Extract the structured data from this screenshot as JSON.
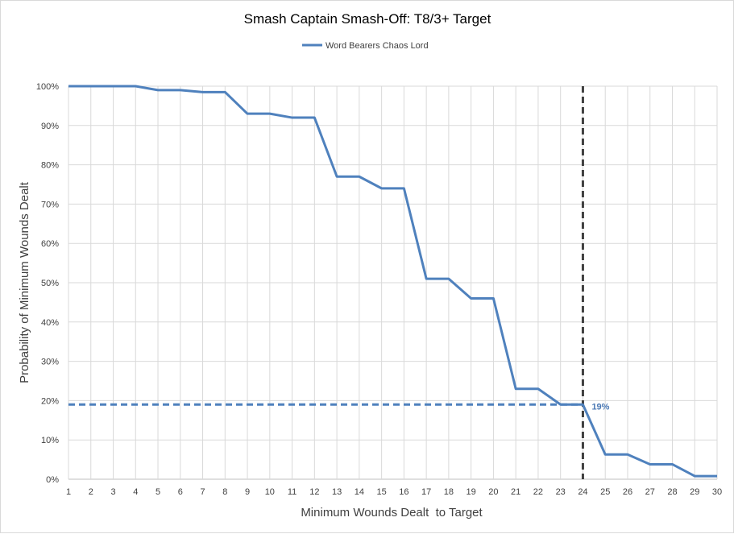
{
  "chart_data": {
    "type": "line",
    "title": "Smash Captain Smash-Off: T8/3+ Target",
    "xlabel": "Minimum Wounds Dealt  to Target",
    "ylabel": "Probability of Minimum Wounds Dealt",
    "x": [
      1,
      2,
      3,
      4,
      5,
      6,
      7,
      8,
      9,
      10,
      11,
      12,
      13,
      14,
      15,
      16,
      17,
      18,
      19,
      20,
      21,
      22,
      23,
      24,
      25,
      26,
      27,
      28,
      29,
      30
    ],
    "xlim": [
      1,
      30
    ],
    "ylim": [
      0,
      100
    ],
    "y_ticks": [
      "0%",
      "10%",
      "20%",
      "30%",
      "40%",
      "50%",
      "60%",
      "70%",
      "80%",
      "90%",
      "100%"
    ],
    "grid": true,
    "legend_position": "top-center",
    "series": [
      {
        "name": "Word Bearers Chaos Lord",
        "color": "#4f81bd",
        "values": [
          100,
          100,
          100,
          100,
          99,
          99,
          98.5,
          98.5,
          93,
          93,
          92,
          92,
          77,
          77,
          74,
          74,
          51,
          51,
          46,
          46,
          23,
          23,
          19,
          19,
          6.3,
          6.3,
          3.8,
          3.8,
          0.8,
          0.8
        ]
      }
    ],
    "reference_lines": {
      "vertical_x": 24,
      "horizontal_y": 19,
      "horizontal_color": "#4f81bd",
      "vertical_color": "#404040"
    },
    "annotation": {
      "x": 24,
      "y": 19,
      "text": "19%"
    }
  }
}
